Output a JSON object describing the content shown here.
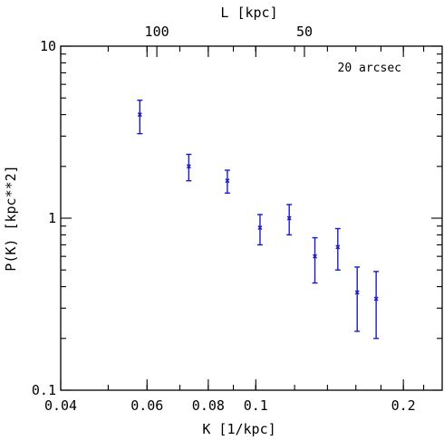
{
  "chart_data": {
    "type": "scatter",
    "title": "",
    "annotation": "20 arcsec",
    "xlabel": "K [1/kpc]",
    "ylabel": "P(K) [kpc**2]",
    "x2label": "L [kpc]",
    "xscale": "log",
    "yscale": "log",
    "xlim": [
      0.04,
      0.24
    ],
    "ylim": [
      0.1,
      10
    ],
    "x_ticks": [
      {
        "value": 0.04,
        "label": "0.04"
      },
      {
        "value": 0.06,
        "label": "0.06"
      },
      {
        "value": 0.08,
        "label": "0.08"
      },
      {
        "value": 0.1,
        "label": "0.1"
      },
      {
        "value": 0.2,
        "label": "0.2"
      }
    ],
    "y_ticks": [
      {
        "value": 0.1,
        "label": "0.1"
      },
      {
        "value": 1,
        "label": "1"
      },
      {
        "value": 10,
        "label": "10"
      }
    ],
    "top_ticks": [
      {
        "value": 100,
        "label": "100"
      },
      {
        "value": 50,
        "label": "50"
      }
    ],
    "color": "#1a1acc",
    "points": [
      {
        "x": 0.058,
        "y": 4.0,
        "ylow": 3.1,
        "yhigh": 4.85
      },
      {
        "x": 0.073,
        "y": 2.0,
        "ylow": 1.65,
        "yhigh": 2.35
      },
      {
        "x": 0.0875,
        "y": 1.65,
        "ylow": 1.4,
        "yhigh": 1.9
      },
      {
        "x": 0.102,
        "y": 0.88,
        "ylow": 0.7,
        "yhigh": 1.05
      },
      {
        "x": 0.117,
        "y": 1.0,
        "ylow": 0.8,
        "yhigh": 1.2
      },
      {
        "x": 0.132,
        "y": 0.6,
        "ylow": 0.42,
        "yhigh": 0.77
      },
      {
        "x": 0.147,
        "y": 0.68,
        "ylow": 0.5,
        "yhigh": 0.87
      },
      {
        "x": 0.161,
        "y": 0.37,
        "ylow": 0.22,
        "yhigh": 0.52
      },
      {
        "x": 0.176,
        "y": 0.34,
        "ylow": 0.2,
        "yhigh": 0.49
      }
    ]
  }
}
